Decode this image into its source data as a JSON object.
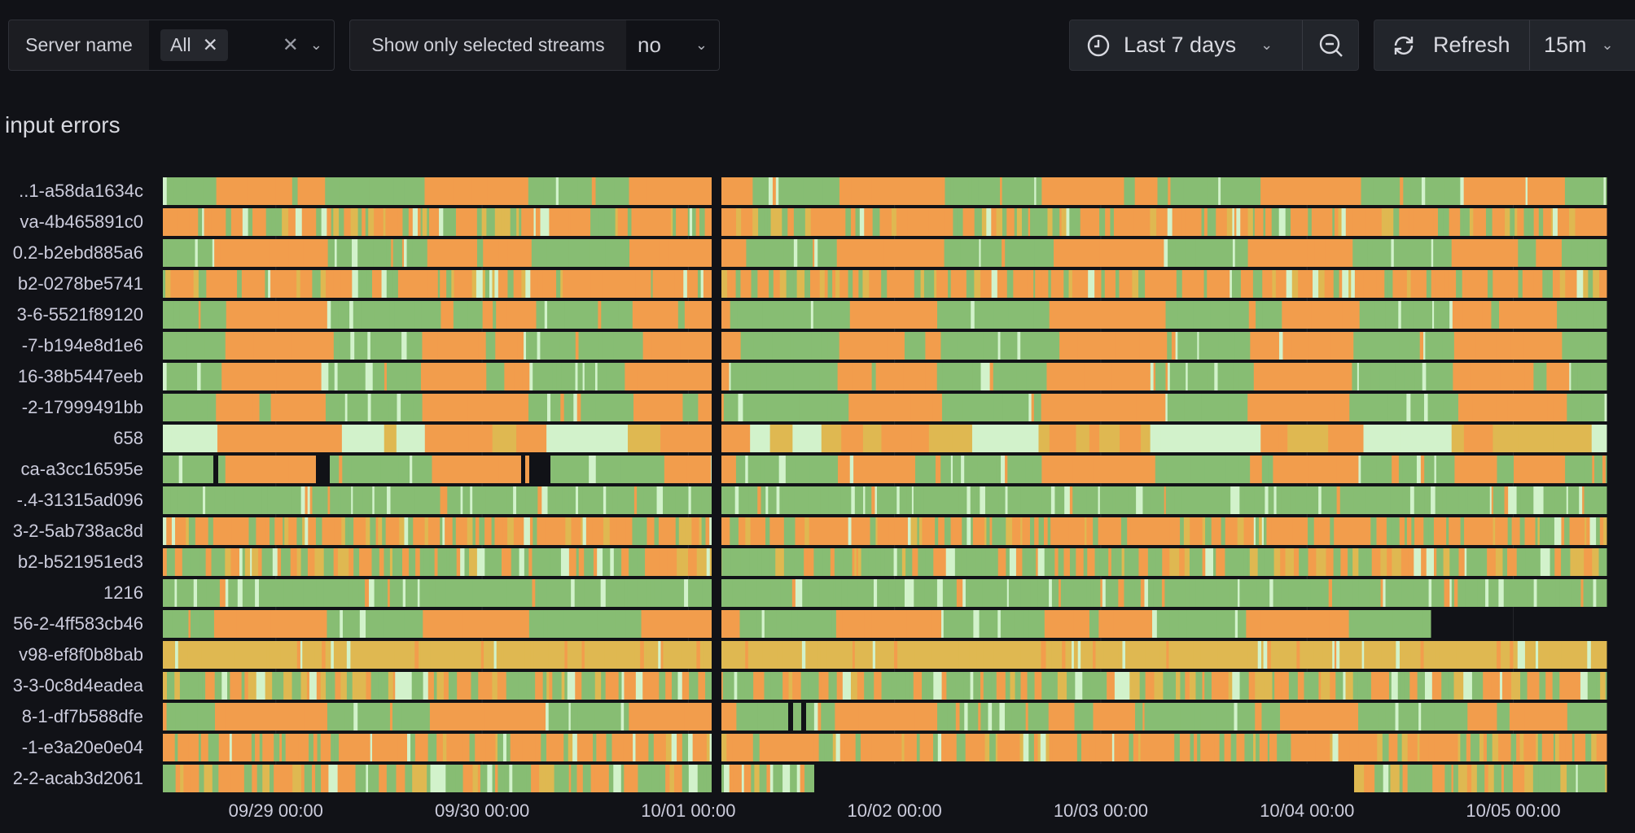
{
  "controls": {
    "server_name_label": "Server name",
    "server_name_value": "All",
    "show_selected_label": "Show only selected streams",
    "show_selected_value": "no",
    "time_range": "Last 7 days",
    "refresh_label": "Refresh",
    "refresh_interval": "15m"
  },
  "panel": {
    "title": "input errors"
  },
  "chart_data": {
    "type": "state-timeline",
    "title": "input errors",
    "rows": [
      "..1-a58da1634c",
      "va-4b465891c0",
      "0.2-b2ebd885a6",
      "b2-0278be5741",
      "3-6-5521f89120",
      "-7-b194e8d1e6",
      "16-38b5447eeb",
      "-2-17999491bb",
      "658",
      "ca-a3cc16595e",
      "-.4-31315ad096",
      "3-2-5ab738ac8d",
      "b2-b521951ed3",
      "1216",
      "56-2-4ff583cb46",
      "v98-ef8f0b8bab",
      "3-3-0c8d4eadea",
      "8-1-df7b588dfe",
      "-1-e3a20e0e04",
      "2-2-acab3d2061"
    ],
    "x_ticks": [
      "09/29 00:00",
      "09/30 00:00",
      "10/01 00:00",
      "10/02 00:00",
      "10/03 00:00",
      "10/04 00:00",
      "10/05 00:00"
    ],
    "xrange_days": 7,
    "state_colors": {
      "green": "#87bd73",
      "orange": "#f29d4c",
      "yellow": "#dfb851",
      "light": "#d2f2cb"
    }
  }
}
